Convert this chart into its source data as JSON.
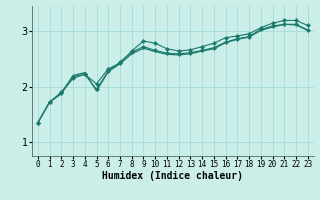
{
  "title": "",
  "xlabel": "Humidex (Indice chaleur)",
  "ylabel": "",
  "background_color": "#cceee8",
  "grid_color": "#aadddd",
  "line_color": "#1a7a6e",
  "xlim": [
    -0.5,
    23.5
  ],
  "ylim": [
    0.75,
    3.45
  ],
  "yticks": [
    1,
    2,
    3
  ],
  "xticks": [
    0,
    1,
    2,
    3,
    4,
    5,
    6,
    7,
    8,
    9,
    10,
    11,
    12,
    13,
    14,
    15,
    16,
    17,
    18,
    19,
    20,
    21,
    22,
    23
  ],
  "series": [
    [
      1.35,
      1.72,
      1.88,
      2.15,
      2.22,
      1.95,
      2.28,
      2.44,
      2.62,
      2.72,
      2.65,
      2.6,
      2.59,
      2.61,
      2.65,
      2.7,
      2.8,
      2.86,
      2.9,
      3.03,
      3.09,
      3.12,
      3.12,
      3.02
    ],
    [
      1.35,
      1.72,
      1.9,
      2.18,
      2.22,
      2.05,
      2.32,
      2.42,
      2.64,
      2.82,
      2.78,
      2.68,
      2.64,
      2.66,
      2.72,
      2.78,
      2.88,
      2.91,
      2.95,
      3.06,
      3.14,
      3.19,
      3.19,
      3.1
    ],
    [
      1.35,
      1.72,
      1.87,
      2.2,
      2.25,
      1.92,
      2.27,
      2.41,
      2.59,
      2.69,
      2.63,
      2.58,
      2.57,
      2.59,
      2.64,
      2.68,
      2.79,
      2.85,
      2.89,
      3.01,
      3.07,
      3.12,
      3.11,
      3.01
    ]
  ],
  "markers": [
    true,
    true,
    false
  ]
}
